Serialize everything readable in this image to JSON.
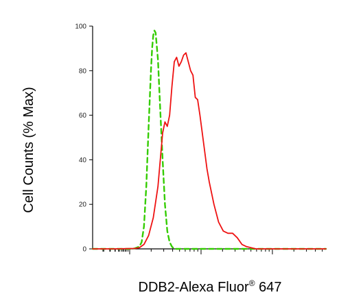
{
  "chart_data": {
    "type": "line",
    "title": "",
    "xlabel_main": "DDB2-Alexa Fluor",
    "xlabel_sup": "®",
    "xlabel_tail": " 647",
    "ylabel": "Cell Counts (% Max)",
    "x_scale": "log",
    "x_tick_labels": [],
    "xlim": [
      0,
      100
    ],
    "ylim": [
      0,
      100
    ],
    "y_ticks": [
      0,
      20,
      40,
      60,
      80,
      100
    ],
    "y_tick_labels": [
      "0",
      "20",
      "40",
      "60",
      "80",
      "100"
    ],
    "grid": false,
    "legend": "none",
    "series": [
      {
        "color": "#33cc00",
        "dash": true,
        "x": [
          0,
          10,
          16,
          18,
          20,
          21,
          22,
          23,
          24,
          25,
          25.5,
          26,
          26.5,
          27,
          28,
          29,
          30,
          31,
          32,
          33,
          34,
          35,
          40,
          50,
          60,
          70,
          80,
          90,
          100
        ],
        "y": [
          0,
          0,
          0,
          0.2,
          1,
          3,
          10,
          28,
          55,
          80,
          90,
          96,
          98,
          97,
          85,
          62,
          40,
          20,
          8,
          3,
          1,
          0,
          0,
          0,
          0,
          0,
          0,
          0,
          0
        ]
      },
      {
        "color": "#ee1111",
        "dash": false,
        "x": [
          0,
          10,
          18,
          20,
          22,
          24,
          26,
          28,
          29,
          30,
          31,
          32,
          33,
          34,
          35,
          36,
          37,
          38,
          39,
          40,
          41,
          42,
          43,
          44,
          45,
          46,
          47,
          48,
          49,
          50,
          52,
          54,
          56,
          58,
          60,
          62,
          64,
          66,
          68,
          70,
          75,
          80,
          90,
          100
        ],
        "y": [
          0,
          0,
          0.2,
          0.5,
          2,
          6,
          14,
          28,
          40,
          52,
          57,
          55,
          60,
          73,
          84,
          86,
          82,
          84,
          87,
          88,
          84,
          80,
          78,
          68,
          67,
          60,
          52,
          44,
          36,
          30,
          20,
          12,
          8,
          7,
          7,
          5,
          2,
          1,
          0.5,
          0,
          0,
          0,
          0,
          0
        ]
      }
    ]
  }
}
